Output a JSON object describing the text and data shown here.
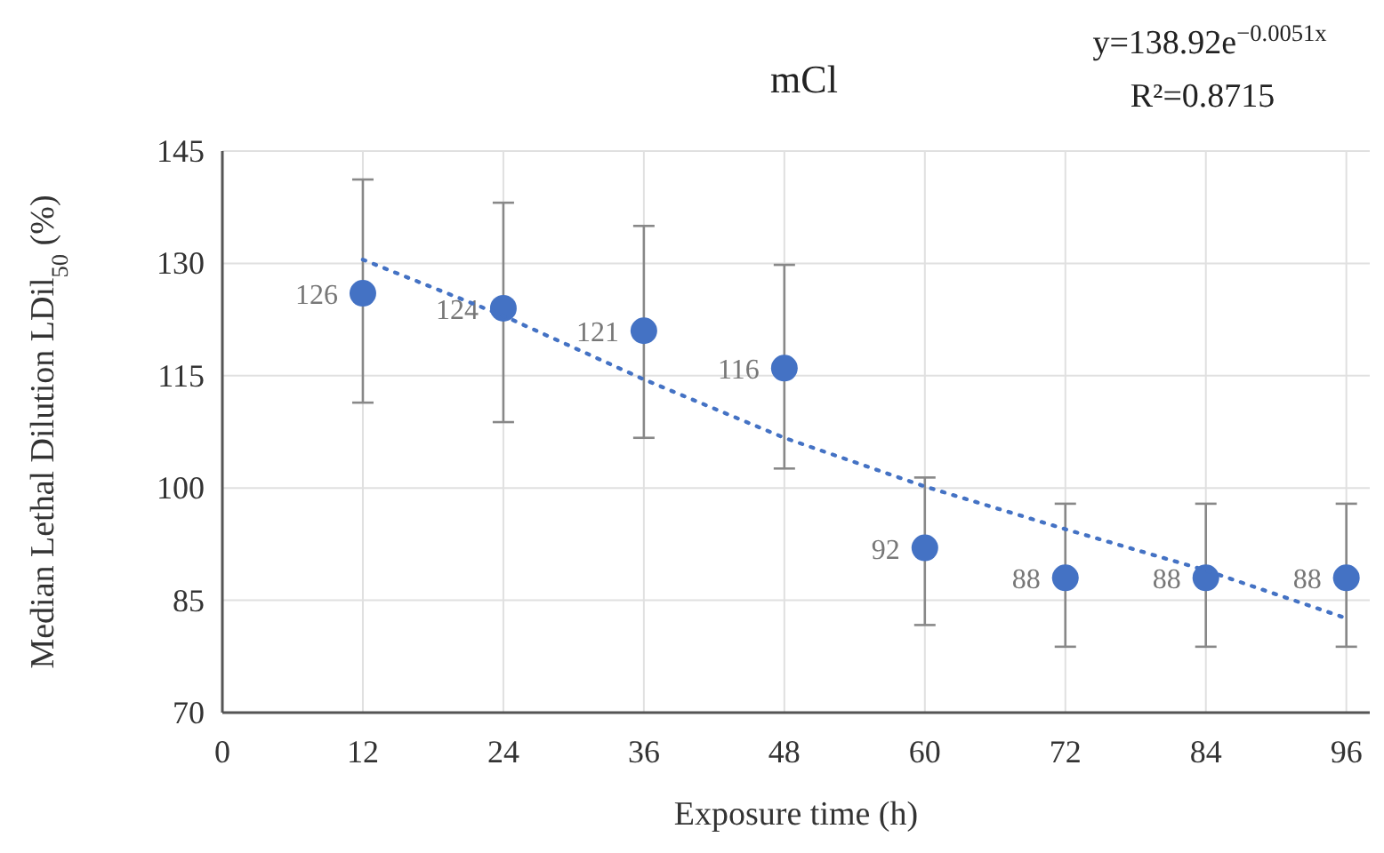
{
  "chart_data": {
    "type": "scatter",
    "title": "mCl",
    "xlabel": "Exposure time (h)",
    "ylabel": "Median Lethal Dilution LDil$_{50}$ (%)",
    "annotations": [
      "y=138.92e$^{−0.0051x}$",
      "R²=0.8715"
    ],
    "x": [
      12,
      24,
      36,
      48,
      60,
      72,
      84,
      96
    ],
    "series": [
      {
        "color": "#4472c4",
        "values": [
          126,
          124,
          121,
          116,
          92,
          88,
          88,
          88
        ],
        "value_labels": [
          "126",
          "124",
          "121",
          "116",
          "92",
          "88",
          "88",
          "88"
        ],
        "errors": [
          [
            111.4,
            141.2
          ],
          [
            108.8,
            138.1
          ],
          [
            106.7,
            135
          ],
          [
            102.6,
            129.8
          ],
          [
            81.7,
            101.4
          ],
          [
            78.8,
            97.9
          ],
          [
            78.8,
            97.9
          ],
          [
            78.8,
            97.9
          ]
        ],
        "marker": "circle"
      },
      {
        "type": "line",
        "color": "#4472c4",
        "line_style": "dotted",
        "x": [
          12,
          24,
          36,
          48,
          60,
          72,
          84,
          96
        ],
        "values": [
          130.5,
          123,
          114.5,
          106.7,
          100.2,
          94.5,
          89,
          82.6
        ]
      }
    ],
    "xlim": [
      0,
      98
    ],
    "xticks": [
      0,
      12,
      24,
      36,
      48,
      60,
      72,
      84,
      96
    ],
    "ylim": [
      70,
      145
    ],
    "yticks": [
      70,
      85,
      100,
      115,
      130,
      145
    ],
    "grid": true
  }
}
